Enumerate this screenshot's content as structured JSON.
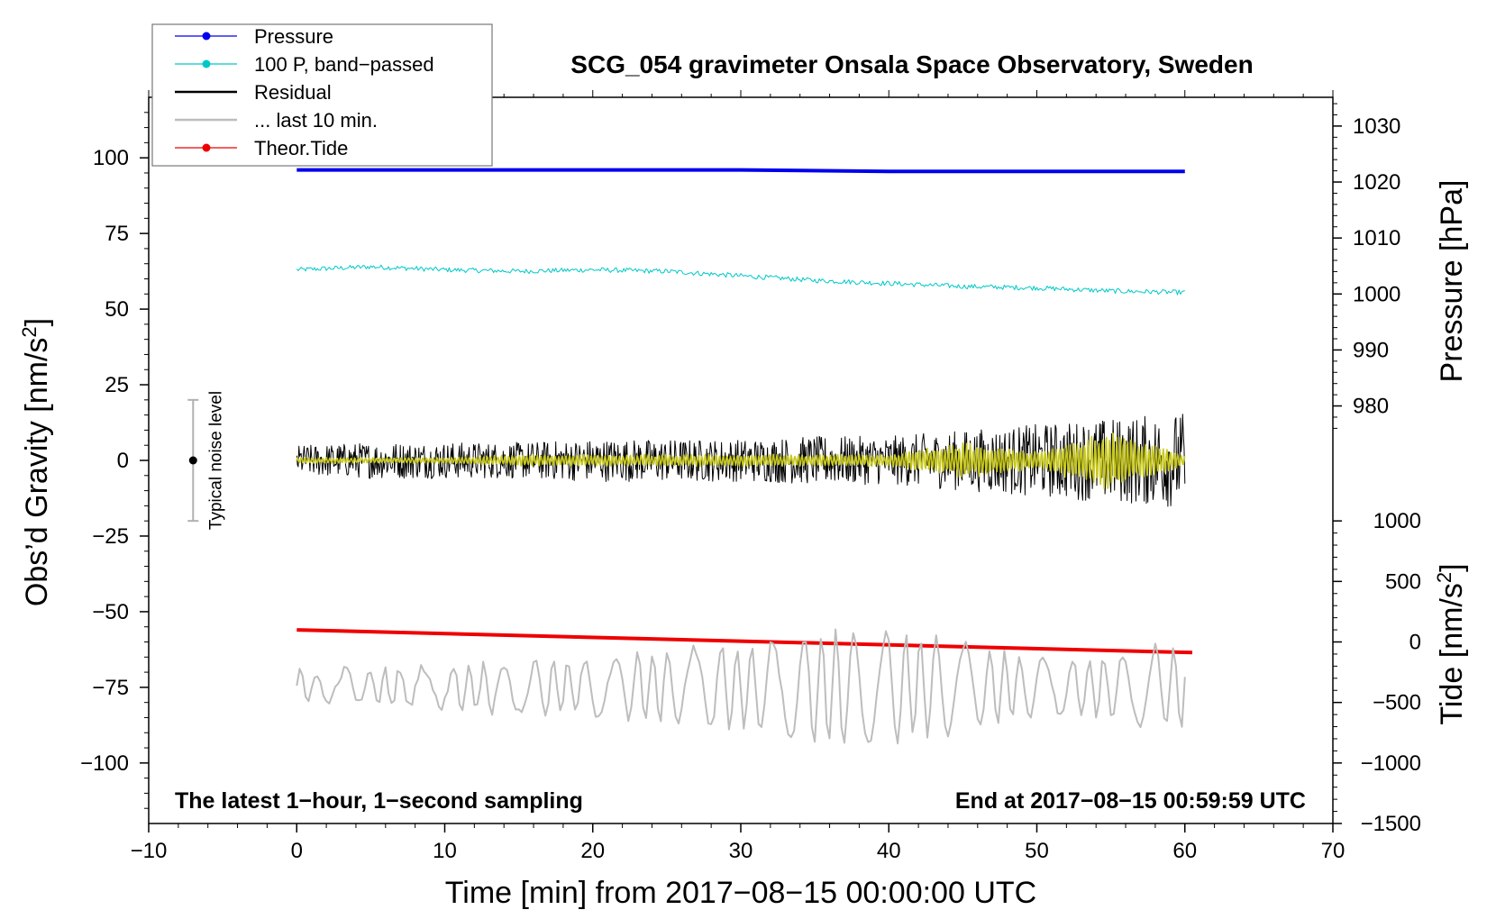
{
  "chart_data": {
    "type": "line",
    "title": "SCG_054 gravimeter Onsala Space Observatory, Sweden",
    "xlabel": "Time [min] from 2017−08−15 00:00:00 UTC",
    "ylabel": "Obs’d Gravity [nm/s",
    "ylabel_sup": "2",
    "ylabel_end": "]",
    "y2label_pressure": "Pressure [hPa]",
    "y2label_tide": "Tide [nm/s",
    "y2label_tide_sup": "2",
    "y2label_tide_end": "]",
    "xlim": [
      -10,
      70
    ],
    "ylim": [
      -120,
      120
    ],
    "x_ticks": [
      -10,
      0,
      10,
      20,
      30,
      40,
      50,
      60,
      70
    ],
    "x_tick_labels": [
      "−10",
      "0",
      "10",
      "20",
      "30",
      "40",
      "50",
      "60",
      "70"
    ],
    "y_ticks": [
      100,
      75,
      50,
      25,
      0,
      -25,
      -50,
      -75,
      -100
    ],
    "y_tick_labels": [
      "100",
      "75",
      "50",
      "25",
      "0",
      "−25",
      "−50",
      "−75",
      "−100"
    ],
    "pressure_axis": {
      "ticks": [
        1030,
        1020,
        1010,
        1000,
        990,
        980
      ],
      "tick_labels": [
        "1030",
        "1020",
        "1010",
        "1000",
        "990",
        "980"
      ],
      "map_gravity_at_1000": 55,
      "gravity_per_hpa": 1.85
    },
    "tide_axis": {
      "ticks": [
        1000,
        500,
        0,
        -500,
        -1000,
        -1500
      ],
      "tick_labels": [
        "1000",
        "500",
        "0",
        "−500",
        "−1000",
        "−1500"
      ],
      "map_gravity_at_0": -60,
      "gravity_per_unit": 0.04
    },
    "legend": [
      {
        "label": "Pressure",
        "color": "#0000ee",
        "marker": true
      },
      {
        "label": "100 P, band−passed",
        "color": "#00c8c8",
        "marker": true
      },
      {
        "label": "Residual",
        "color": "#000000",
        "marker": false
      },
      {
        "label": "... last 10 min.",
        "color": "#bdbdbd",
        "marker": false
      },
      {
        "label": "Theor.Tide",
        "color": "#ee0000",
        "marker": true
      }
    ],
    "series": [
      {
        "name": "Pressure",
        "color": "#0000ee",
        "x": [
          0,
          10,
          20,
          30,
          40,
          50,
          60
        ],
        "y": [
          96,
          96,
          96,
          96,
          95.5,
          95.5,
          95.5
        ]
      },
      {
        "name": "100 P, band−passed",
        "color": "#00c8c8",
        "x": [
          0,
          5,
          10,
          15,
          20,
          25,
          30,
          35,
          40,
          45,
          50,
          55,
          60
        ],
        "y": [
          63,
          64,
          63,
          62.5,
          63,
          62.5,
          61,
          59.5,
          58.5,
          57.5,
          57,
          56,
          55.5
        ]
      },
      {
        "name": "Residual",
        "color": "#000000",
        "x_range": [
          0,
          60
        ],
        "amplitude": [
          5,
          6,
          6,
          6,
          7,
          7,
          7,
          8,
          8,
          10,
          12,
          14,
          16
        ]
      },
      {
        "name": "Residual (smoothed)",
        "color": "#c8c81e",
        "x_range": [
          0,
          60
        ],
        "amplitude": [
          1,
          1,
          1,
          2,
          2,
          2,
          2,
          2,
          2,
          6,
          3,
          10,
          2
        ]
      },
      {
        "name": "Theor.Tide",
        "color": "#ee0000",
        "x": [
          0,
          60.5
        ],
        "y": [
          -56,
          -63.5
        ]
      },
      {
        "name": "... last 10 min.",
        "color": "#bdbdbd",
        "x_range": [
          0,
          60
        ],
        "baseline": -75,
        "amplitude": [
          5,
          6,
          7,
          8,
          9,
          12,
          14,
          18,
          18,
          15,
          10,
          10,
          15
        ]
      }
    ],
    "noise_bar": {
      "label": "Typical noise level",
      "x": -7,
      "y": 0,
      "low": -20,
      "high": 20
    },
    "annotations": {
      "left": "The latest 1−hour, 1−second sampling",
      "right": "End at 2017−08−15 00:59:59 UTC"
    }
  }
}
